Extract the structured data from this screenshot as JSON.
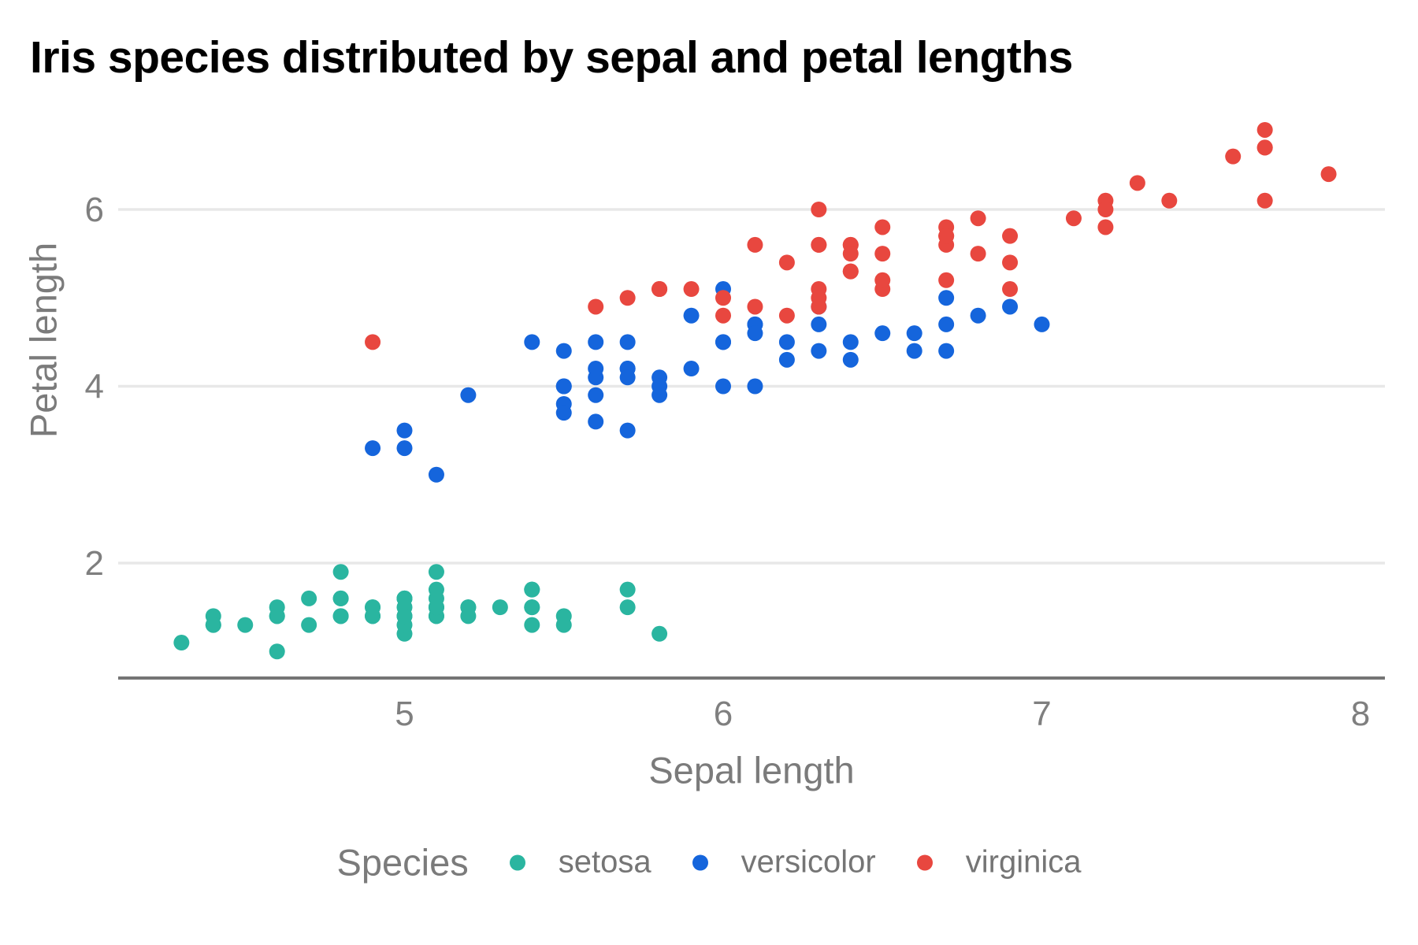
{
  "title": "Iris species distributed by sepal and petal lengths",
  "legend": {
    "title": "Species",
    "items": [
      {
        "label": "setosa",
        "color": "#2AB5A0"
      },
      {
        "label": "versicolor",
        "color": "#1565DC"
      },
      {
        "label": "virginica",
        "color": "#E8473F"
      }
    ]
  },
  "axes": {
    "x_label": "Sepal length",
    "y_label": "Petal length"
  },
  "colors": {
    "grid": "#E8E8E8",
    "axis_line": "#757575",
    "tick_text": "#7F7F7F",
    "title_text": "#000000",
    "axis_title_text": "#7B7B7B"
  },
  "chart_data": {
    "type": "scatter",
    "title": "Iris species distributed by sepal and petal lengths",
    "xlabel": "Sepal length",
    "ylabel": "Petal length",
    "x_ticks": [
      5,
      6,
      7,
      8
    ],
    "y_ticks": [
      2,
      4,
      6
    ],
    "xlim": [
      4.1,
      8.1
    ],
    "ylim": [
      0.7,
      7.2
    ],
    "grid": "horizontal-gridlines-only",
    "legend_position": "bottom",
    "series": [
      {
        "name": "setosa",
        "color": "#2AB5A0",
        "points": [
          [
            5.1,
            1.4
          ],
          [
            4.9,
            1.4
          ],
          [
            4.7,
            1.3
          ],
          [
            4.6,
            1.5
          ],
          [
            5.0,
            1.4
          ],
          [
            5.4,
            1.7
          ],
          [
            4.6,
            1.4
          ],
          [
            5.0,
            1.5
          ],
          [
            4.4,
            1.4
          ],
          [
            4.9,
            1.5
          ],
          [
            5.4,
            1.5
          ],
          [
            4.8,
            1.6
          ],
          [
            4.8,
            1.4
          ],
          [
            4.3,
            1.1
          ],
          [
            5.8,
            1.2
          ],
          [
            5.7,
            1.5
          ],
          [
            5.4,
            1.3
          ],
          [
            5.1,
            1.4
          ],
          [
            5.7,
            1.7
          ],
          [
            5.1,
            1.5
          ],
          [
            5.4,
            1.7
          ],
          [
            5.1,
            1.5
          ],
          [
            4.6,
            1.0
          ],
          [
            5.1,
            1.7
          ],
          [
            4.8,
            1.9
          ],
          [
            5.0,
            1.6
          ],
          [
            5.0,
            1.6
          ],
          [
            5.2,
            1.5
          ],
          [
            5.2,
            1.4
          ],
          [
            4.7,
            1.6
          ],
          [
            4.8,
            1.6
          ],
          [
            5.4,
            1.5
          ],
          [
            5.2,
            1.5
          ],
          [
            5.5,
            1.4
          ],
          [
            4.9,
            1.5
          ],
          [
            5.0,
            1.2
          ],
          [
            5.5,
            1.3
          ],
          [
            4.9,
            1.4
          ],
          [
            4.4,
            1.3
          ],
          [
            5.1,
            1.5
          ],
          [
            5.0,
            1.3
          ],
          [
            4.5,
            1.3
          ],
          [
            4.4,
            1.3
          ],
          [
            5.0,
            1.6
          ],
          [
            5.1,
            1.9
          ],
          [
            4.8,
            1.4
          ],
          [
            5.1,
            1.6
          ],
          [
            4.6,
            1.4
          ],
          [
            5.3,
            1.5
          ],
          [
            5.0,
            1.4
          ]
        ]
      },
      {
        "name": "versicolor",
        "color": "#1565DC",
        "points": [
          [
            7.0,
            4.7
          ],
          [
            6.4,
            4.5
          ],
          [
            6.9,
            4.9
          ],
          [
            5.5,
            4.0
          ],
          [
            6.5,
            4.6
          ],
          [
            5.7,
            4.5
          ],
          [
            6.3,
            4.7
          ],
          [
            4.9,
            3.3
          ],
          [
            6.6,
            4.6
          ],
          [
            5.2,
            3.9
          ],
          [
            5.0,
            3.5
          ],
          [
            5.9,
            4.2
          ],
          [
            6.0,
            4.0
          ],
          [
            6.1,
            4.7
          ],
          [
            5.6,
            3.6
          ],
          [
            6.7,
            4.4
          ],
          [
            5.6,
            4.5
          ],
          [
            5.8,
            4.1
          ],
          [
            6.2,
            4.5
          ],
          [
            5.6,
            3.9
          ],
          [
            5.9,
            4.8
          ],
          [
            6.1,
            4.0
          ],
          [
            6.3,
            4.9
          ],
          [
            6.1,
            4.7
          ],
          [
            6.4,
            4.3
          ],
          [
            6.6,
            4.4
          ],
          [
            6.8,
            4.8
          ],
          [
            6.7,
            5.0
          ],
          [
            6.0,
            4.5
          ],
          [
            5.7,
            3.5
          ],
          [
            5.5,
            3.8
          ],
          [
            5.5,
            3.7
          ],
          [
            5.8,
            3.9
          ],
          [
            6.0,
            5.1
          ],
          [
            5.4,
            4.5
          ],
          [
            6.0,
            4.5
          ],
          [
            6.7,
            4.7
          ],
          [
            6.3,
            4.4
          ],
          [
            5.6,
            4.1
          ],
          [
            5.5,
            4.0
          ],
          [
            5.5,
            4.4
          ],
          [
            6.1,
            4.6
          ],
          [
            5.8,
            4.0
          ],
          [
            5.0,
            3.3
          ],
          [
            5.6,
            4.2
          ],
          [
            5.7,
            4.2
          ],
          [
            5.7,
            4.2
          ],
          [
            6.2,
            4.3
          ],
          [
            5.1,
            3.0
          ],
          [
            5.7,
            4.1
          ]
        ]
      },
      {
        "name": "virginica",
        "color": "#E8473F",
        "points": [
          [
            6.3,
            6.0
          ],
          [
            5.8,
            5.1
          ],
          [
            7.1,
            5.9
          ],
          [
            6.3,
            5.6
          ],
          [
            6.5,
            5.8
          ],
          [
            7.6,
            6.6
          ],
          [
            4.9,
            4.5
          ],
          [
            7.3,
            6.3
          ],
          [
            6.7,
            5.8
          ],
          [
            7.2,
            6.1
          ],
          [
            6.5,
            5.1
          ],
          [
            6.4,
            5.3
          ],
          [
            6.8,
            5.5
          ],
          [
            5.7,
            5.0
          ],
          [
            5.8,
            5.1
          ],
          [
            6.4,
            5.3
          ],
          [
            6.5,
            5.5
          ],
          [
            7.7,
            6.7
          ],
          [
            7.7,
            6.9
          ],
          [
            6.0,
            5.0
          ],
          [
            6.9,
            5.7
          ],
          [
            5.6,
            4.9
          ],
          [
            7.7,
            6.7
          ],
          [
            6.3,
            4.9
          ],
          [
            6.7,
            5.7
          ],
          [
            7.2,
            6.0
          ],
          [
            6.2,
            4.8
          ],
          [
            6.1,
            4.9
          ],
          [
            6.4,
            5.6
          ],
          [
            7.2,
            5.8
          ],
          [
            7.4,
            6.1
          ],
          [
            7.9,
            6.4
          ],
          [
            6.4,
            5.6
          ],
          [
            6.3,
            5.1
          ],
          [
            6.1,
            5.6
          ],
          [
            7.7,
            6.1
          ],
          [
            6.3,
            5.6
          ],
          [
            6.4,
            5.5
          ],
          [
            6.0,
            4.8
          ],
          [
            6.9,
            5.4
          ],
          [
            6.7,
            5.6
          ],
          [
            6.9,
            5.1
          ],
          [
            5.8,
            5.1
          ],
          [
            6.8,
            5.9
          ],
          [
            6.7,
            5.7
          ],
          [
            6.7,
            5.2
          ],
          [
            6.3,
            5.0
          ],
          [
            6.5,
            5.2
          ],
          [
            6.2,
            5.4
          ],
          [
            5.9,
            5.1
          ]
        ]
      }
    ]
  }
}
